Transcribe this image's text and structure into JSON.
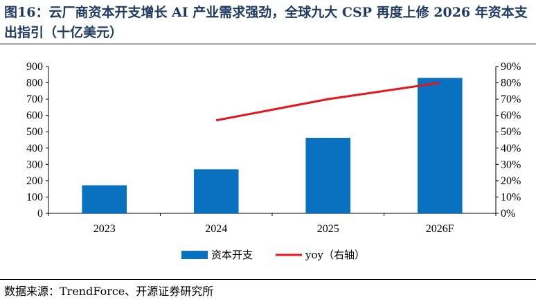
{
  "title": "图16：云厂商资本开支增长 AI 产业需求强劲，全球九大 CSP 再度上修 2026 年资本支出指引（十亿美元）",
  "source": "数据来源：TrendForce、开源证券研究所",
  "chart_data": {
    "type": "bar",
    "categories": [
      "2023",
      "2024",
      "2025",
      "2026F"
    ],
    "series": [
      {
        "name": "资本开支",
        "type": "bar",
        "axis": "left",
        "color": "#0a70c0",
        "values": [
          172,
          270,
          463,
          830
        ]
      },
      {
        "name": "yoy（右轴）",
        "type": "line",
        "axis": "right",
        "color": "#e8141b",
        "values": [
          null,
          57,
          70,
          80
        ]
      }
    ],
    "ylim_left": [
      0,
      900
    ],
    "yticks_left": [
      "0",
      "100",
      "200",
      "300",
      "400",
      "500",
      "600",
      "700",
      "800",
      "900"
    ],
    "ylim_right": [
      0,
      90
    ],
    "yticks_right": [
      "0%",
      "10%",
      "20%",
      "30%",
      "40%",
      "50%",
      "60%",
      "70%",
      "80%",
      "90%"
    ],
    "grid": false,
    "legend": "bottom-center"
  }
}
